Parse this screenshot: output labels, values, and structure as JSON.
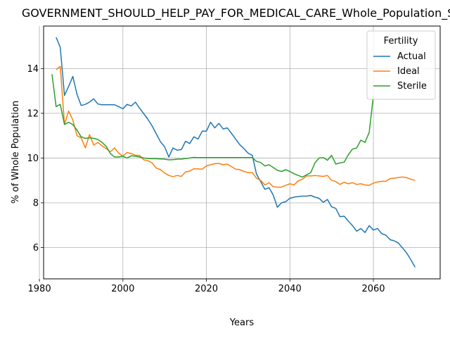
{
  "chart_data": {
    "type": "line",
    "title": "GOVERNMENT_SHOULD_HELP_PAY_FOR_MEDICAL_CARE_Whole_Population_Sc",
    "xlabel": "Years",
    "ylabel": "% of Whole Population",
    "xlim": [
      1981,
      2076
    ],
    "ylim": [
      4.6,
      15.9
    ],
    "xticks": [
      1980,
      2000,
      2020,
      2040,
      2060
    ],
    "yticks": [
      6,
      8,
      10,
      12,
      14
    ],
    "grid": true,
    "legend": {
      "title": "Fertility",
      "placement": "top-right"
    },
    "series": [
      {
        "name": "Actual",
        "color": "#1f77b4",
        "x": [
          1984,
          1985,
          1986,
          1987,
          1988,
          1989,
          1990,
          1991,
          1992,
          1993,
          1994,
          1995,
          1996,
          1997,
          1998,
          1999,
          2000,
          2001,
          2002,
          2003,
          2004,
          2005,
          2006,
          2007,
          2008,
          2009,
          2010,
          2011,
          2012,
          2013,
          2014,
          2015,
          2016,
          2017,
          2018,
          2019,
          2020,
          2021,
          2022,
          2023,
          2024,
          2025,
          2026,
          2027,
          2028,
          2029,
          2030,
          2031,
          2032,
          2033,
          2034,
          2035,
          2036,
          2037,
          2038,
          2039,
          2040,
          2041,
          2042,
          2043,
          2044,
          2045,
          2046,
          2047,
          2048,
          2049,
          2050,
          2051,
          2052,
          2053,
          2054,
          2055,
          2056,
          2057,
          2058,
          2059,
          2060,
          2061,
          2062,
          2063,
          2064,
          2065,
          2066,
          2067,
          2068,
          2069,
          2070
        ],
        "y": [
          15.4,
          14.95,
          12.8,
          13.2,
          13.65,
          12.85,
          12.35,
          12.4,
          12.5,
          12.65,
          12.42,
          12.38,
          12.38,
          12.38,
          12.38,
          12.3,
          12.2,
          12.4,
          12.33,
          12.5,
          12.23,
          11.98,
          11.73,
          11.43,
          11.08,
          10.73,
          10.5,
          10.05,
          10.45,
          10.35,
          10.38,
          10.75,
          10.65,
          10.95,
          10.85,
          11.2,
          11.2,
          11.6,
          11.35,
          11.55,
          11.3,
          11.35,
          11.1,
          10.85,
          10.6,
          10.42,
          10.22,
          10.12,
          9.28,
          8.95,
          8.6,
          8.68,
          8.35,
          7.8,
          8.0,
          8.05,
          8.2,
          8.25,
          8.28,
          8.3,
          8.3,
          8.33,
          8.25,
          8.2,
          8.02,
          8.15,
          7.82,
          7.75,
          7.38,
          7.4,
          7.18,
          6.98,
          6.73,
          6.85,
          6.67,
          6.98,
          6.78,
          6.85,
          6.62,
          6.55,
          6.35,
          6.3,
          6.2,
          5.98,
          5.75,
          5.45,
          5.12
        ]
      },
      {
        "name": "Ideal",
        "color": "#ff7f0e",
        "x": [
          1984,
          1985,
          1986,
          1987,
          1988,
          1989,
          1990,
          1991,
          1992,
          1993,
          1994,
          1995,
          1996,
          1997,
          1998,
          1999,
          2000,
          2001,
          2002,
          2003,
          2004,
          2005,
          2006,
          2007,
          2008,
          2009,
          2010,
          2011,
          2012,
          2013,
          2014,
          2015,
          2016,
          2017,
          2018,
          2019,
          2020,
          2021,
          2022,
          2023,
          2024,
          2025,
          2026,
          2027,
          2028,
          2029,
          2030,
          2031,
          2032,
          2033,
          2034,
          2035,
          2036,
          2037,
          2038,
          2039,
          2040,
          2041,
          2042,
          2043,
          2044,
          2045,
          2046,
          2047,
          2048,
          2049,
          2050,
          2051,
          2052,
          2053,
          2054,
          2055,
          2056,
          2057,
          2058,
          2059,
          2060,
          2061,
          2062,
          2063,
          2064,
          2065,
          2066,
          2067,
          2068,
          2069,
          2070
        ],
        "y": [
          13.95,
          14.1,
          11.5,
          12.1,
          11.7,
          11.0,
          10.9,
          10.45,
          11.05,
          10.58,
          10.7,
          10.55,
          10.42,
          10.28,
          10.45,
          10.22,
          10.08,
          10.25,
          10.2,
          10.12,
          10.12,
          9.92,
          9.88,
          9.78,
          9.55,
          9.48,
          9.33,
          9.22,
          9.17,
          9.22,
          9.18,
          9.38,
          9.42,
          9.52,
          9.52,
          9.5,
          9.65,
          9.7,
          9.75,
          9.76,
          9.7,
          9.73,
          9.62,
          9.5,
          9.48,
          9.4,
          9.35,
          9.35,
          9.1,
          9.0,
          8.8,
          8.9,
          8.72,
          8.7,
          8.7,
          8.78,
          8.85,
          8.8,
          8.98,
          9.05,
          9.2,
          9.2,
          9.22,
          9.2,
          9.18,
          9.22,
          9.0,
          8.95,
          8.82,
          8.92,
          8.85,
          8.9,
          8.82,
          8.85,
          8.8,
          8.78,
          8.88,
          8.93,
          8.96,
          8.97,
          9.08,
          9.1,
          9.13,
          9.15,
          9.12,
          9.05,
          9.0
        ]
      },
      {
        "name": "Sterile",
        "color": "#2ca02c",
        "x": [
          1983,
          1984,
          1985,
          1986,
          1987,
          1988,
          1989,
          1990,
          1991,
          1992,
          1993,
          1994,
          1995,
          1996,
          1997,
          1998,
          1999,
          2000,
          2001,
          2002,
          2003,
          2004,
          2005,
          2006,
          2007,
          2008,
          2009,
          2010,
          2011,
          2012,
          2013,
          2014,
          2015,
          2016,
          2017,
          2018,
          2019,
          2020,
          2021,
          2022,
          2023,
          2024,
          2025,
          2026,
          2027,
          2028,
          2029,
          2030,
          2031,
          2032,
          2033,
          2034,
          2035,
          2036,
          2037,
          2038,
          2039,
          2040,
          2041,
          2042,
          2043,
          2044,
          2045,
          2046,
          2047,
          2048,
          2049,
          2050,
          2051,
          2052,
          2053,
          2054,
          2055,
          2056,
          2057,
          2058,
          2059,
          2060
        ],
        "y": [
          13.75,
          12.3,
          12.4,
          11.5,
          11.6,
          11.5,
          11.25,
          10.95,
          10.88,
          10.9,
          10.88,
          10.83,
          10.7,
          10.52,
          10.2,
          10.05,
          10.05,
          10.08,
          10.0,
          10.1,
          10.08,
          10.05,
          10.0,
          9.98,
          9.97,
          9.97,
          9.96,
          9.95,
          9.92,
          9.93,
          9.95,
          9.95,
          9.98,
          10.0,
          10.03,
          10.02,
          10.02,
          10.02,
          10.02,
          10.02,
          10.02,
          10.02,
          10.02,
          10.02,
          10.02,
          10.02,
          10.02,
          10.02,
          10.02,
          9.85,
          9.8,
          9.65,
          9.7,
          9.58,
          9.45,
          9.4,
          9.48,
          9.4,
          9.3,
          9.22,
          9.15,
          9.25,
          9.35,
          9.78,
          10.0,
          10.02,
          9.9,
          10.12,
          9.73,
          9.78,
          9.82,
          10.15,
          10.4,
          10.45,
          10.8,
          10.7,
          11.15,
          12.78
        ]
      }
    ]
  }
}
